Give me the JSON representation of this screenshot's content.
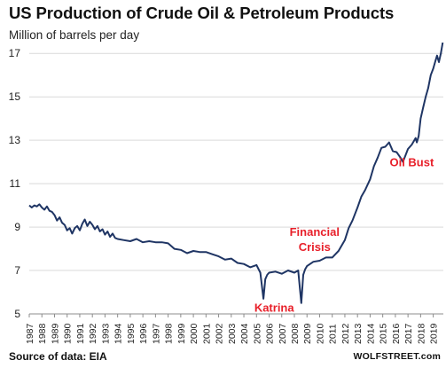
{
  "header": {
    "title": "US Production  of Crude Oil & Petroleum Products",
    "subtitle": "Million of barrels per day"
  },
  "footer": {
    "source": "Source of data: EIA",
    "brand": "WOLFSTREET.com"
  },
  "colors": {
    "line": "#1f3564",
    "annotation": "#e8202a",
    "grid": "#d9d9d9",
    "axis": "#8c8c8c"
  },
  "chart_data": {
    "type": "line",
    "title": "US Production  of Crude Oil & Petroleum Products",
    "ylabel": "Million of barrels per day",
    "xlabel": "",
    "ylim": [
      5,
      17.5
    ],
    "xlim": [
      1987.0,
      2019.8
    ],
    "yticks": [
      5,
      7,
      9,
      11,
      13,
      15,
      17
    ],
    "xticks": [
      "1987",
      "1988",
      "1989",
      "1990",
      "1991",
      "1992",
      "1993",
      "1994",
      "1995",
      "1996",
      "1997",
      "1998",
      "1999",
      "2000",
      "2001",
      "2002",
      "2003",
      "2004",
      "2005",
      "2006",
      "2007",
      "2008",
      "2009",
      "2010",
      "2011",
      "2012",
      "2013",
      "2014",
      "2015",
      "2016",
      "2017",
      "2018",
      "2019"
    ],
    "grid": "horizontal",
    "series": [
      {
        "x": [
          1987.0,
          1987.2,
          1987.4,
          1987.6,
          1987.8,
          1988.0,
          1988.2,
          1988.4,
          1988.6,
          1988.8,
          1989.0,
          1989.2,
          1989.4,
          1989.6,
          1989.8,
          1990.0,
          1990.2,
          1990.4,
          1990.6,
          1990.8,
          1991.0,
          1991.2,
          1991.4,
          1991.6,
          1991.8,
          1992.0,
          1992.2,
          1992.4,
          1992.6,
          1992.8,
          1993.0,
          1993.2,
          1993.4,
          1993.6,
          1993.8,
          1994.0,
          1994.5,
          1995.0,
          1995.5,
          1996.0,
          1996.5,
          1997.0,
          1997.5,
          1998.0,
          1998.5,
          1999.0,
          1999.5,
          2000.0,
          2000.5,
          2001.0,
          2001.5,
          2002.0,
          2002.5,
          2003.0,
          2003.5,
          2004.0,
          2004.5,
          2005.0,
          2005.3,
          2005.55,
          2005.7,
          2005.85,
          2006.0,
          2006.5,
          2007.0,
          2007.5,
          2008.0,
          2008.3,
          2008.55,
          2008.7,
          2008.85,
          2009.0,
          2009.5,
          2010.0,
          2010.5,
          2011.0,
          2011.5,
          2012.0,
          2012.3,
          2012.6,
          2013.0,
          2013.3,
          2013.6,
          2014.0,
          2014.3,
          2014.6,
          2014.9,
          2015.2,
          2015.5,
          2015.8,
          2016.1,
          2016.4,
          2016.6,
          2016.8,
          2017.0,
          2017.3,
          2017.6,
          2017.7,
          2017.85,
          2018.0,
          2018.2,
          2018.4,
          2018.6,
          2018.8,
          2019.0,
          2019.15,
          2019.3,
          2019.45,
          2019.6,
          2019.75
        ],
        "values": [
          10.0,
          9.9,
          10.0,
          9.95,
          10.05,
          9.9,
          9.8,
          9.95,
          9.75,
          9.7,
          9.55,
          9.3,
          9.45,
          9.2,
          9.1,
          8.85,
          8.95,
          8.7,
          8.95,
          9.05,
          8.85,
          9.15,
          9.35,
          9.05,
          9.25,
          9.1,
          8.9,
          9.05,
          8.8,
          8.9,
          8.65,
          8.8,
          8.55,
          8.7,
          8.5,
          8.45,
          8.4,
          8.35,
          8.45,
          8.3,
          8.35,
          8.3,
          8.3,
          8.25,
          8.0,
          7.95,
          7.8,
          7.9,
          7.85,
          7.85,
          7.75,
          7.65,
          7.5,
          7.55,
          7.35,
          7.3,
          7.15,
          7.25,
          6.9,
          5.7,
          6.6,
          6.8,
          6.9,
          6.95,
          6.85,
          7.0,
          6.9,
          7.0,
          5.5,
          6.8,
          7.05,
          7.2,
          7.4,
          7.45,
          7.6,
          7.6,
          7.9,
          8.4,
          8.95,
          9.3,
          9.9,
          10.4,
          10.7,
          11.2,
          11.8,
          12.2,
          12.65,
          12.7,
          12.9,
          12.5,
          12.45,
          12.2,
          12.0,
          12.3,
          12.6,
          12.8,
          13.1,
          12.9,
          13.2,
          14.0,
          14.5,
          15.0,
          15.4,
          16.0,
          16.3,
          16.6,
          16.9,
          16.6,
          17.0,
          17.5
        ]
      }
    ],
    "annotations": [
      {
        "text": "Oil Bust",
        "x": 2017.3,
        "y": 11.8
      },
      {
        "text": "Financial",
        "x": 2009.6,
        "y": 8.6
      },
      {
        "text": "Crisis",
        "x": 2009.6,
        "y": 7.9
      },
      {
        "text": "Katrina",
        "x": 2006.4,
        "y": 5.1
      }
    ]
  }
}
